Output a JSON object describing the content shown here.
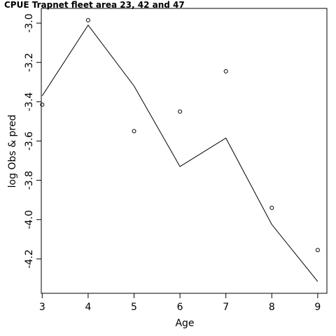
{
  "chart_data": {
    "type": "line",
    "title": "CPUE Trapnet fleet area 23, 42 and 47",
    "xlabel": "Age",
    "ylabel": "log Obs & pred",
    "x": [
      3,
      4,
      5,
      6,
      7,
      8,
      9
    ],
    "series": [
      {
        "style": "line",
        "values": [
          -3.37,
          -3.01,
          -3.32,
          -3.73,
          -3.585,
          -4.025,
          -4.315
        ]
      },
      {
        "style": "points",
        "values": [
          -3.415,
          -2.985,
          -3.55,
          -3.45,
          -3.245,
          -3.94,
          -4.155
        ]
      }
    ],
    "xlim": [
      2.98,
      9.2
    ],
    "ylim": [
      -4.375,
      -2.925
    ],
    "xticks": [
      "3",
      "4",
      "5",
      "6",
      "7",
      "8",
      "9"
    ],
    "yticks": [
      "-3.0",
      "-3.2",
      "-3.4",
      "-3.6",
      "-3.8",
      "-4.0",
      "-4.2"
    ],
    "grid": false,
    "legend": "none"
  }
}
